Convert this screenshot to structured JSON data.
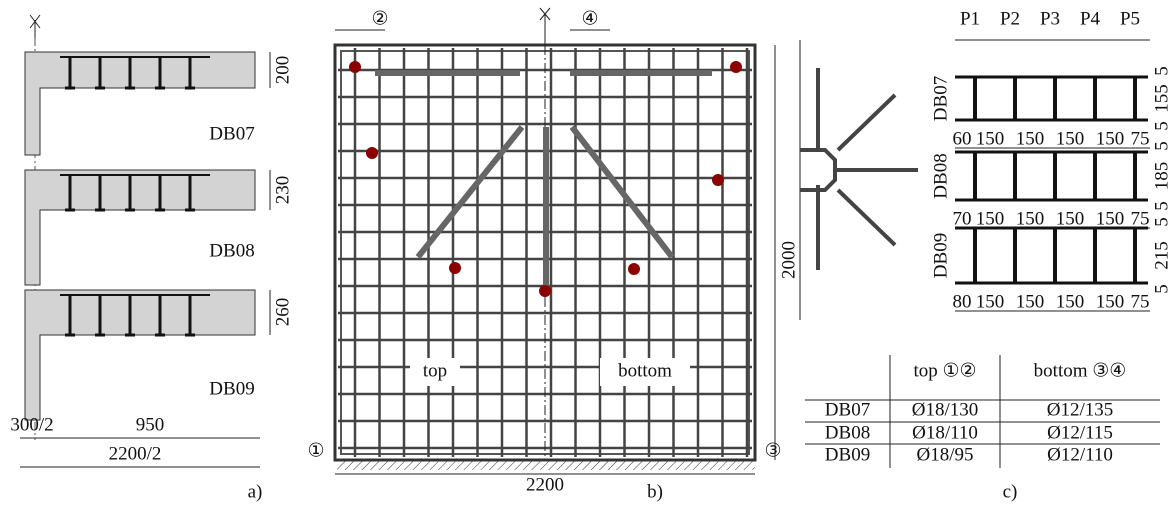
{
  "panel_a": {
    "sections": [
      {
        "label": "DB07",
        "height": "200"
      },
      {
        "label": "DB08",
        "height": "230"
      },
      {
        "label": "DB09",
        "height": "260"
      }
    ],
    "dims": [
      "300/2",
      "950",
      "2200/2"
    ],
    "caption": "a)"
  },
  "panel_b": {
    "markers": [
      "②",
      "④",
      "①",
      "③"
    ],
    "height": "2000",
    "width": "2200",
    "labels": [
      "top",
      "bottom"
    ],
    "caption": "b)"
  },
  "panel_c": {
    "columns": [
      "P1",
      "P2",
      "P3",
      "P4",
      "P5"
    ],
    "beams": [
      {
        "label": "DB07",
        "spacings": [
          "60",
          "150",
          "150",
          "150",
          "150",
          "75"
        ],
        "depths": [
          "5",
          "155",
          "5"
        ]
      },
      {
        "label": "DB08",
        "spacings": [
          "70",
          "150",
          "150",
          "150",
          "150",
          "75"
        ],
        "depths": [
          "5",
          "185",
          "5"
        ]
      },
      {
        "label": "DB09",
        "spacings": [
          "80",
          "150",
          "150",
          "150",
          "150",
          "75"
        ],
        "depths": [
          "5",
          "215",
          "5"
        ]
      }
    ],
    "table": {
      "headers": [
        "top ①②",
        "bottom ③④"
      ],
      "rows": [
        [
          "DB07",
          "Ø18/130",
          "Ø12/135"
        ],
        [
          "DB08",
          "Ø18/110",
          "Ø12/115"
        ],
        [
          "DB09",
          "Ø18/95",
          "Ø12/110"
        ]
      ]
    },
    "caption": "c)"
  }
}
